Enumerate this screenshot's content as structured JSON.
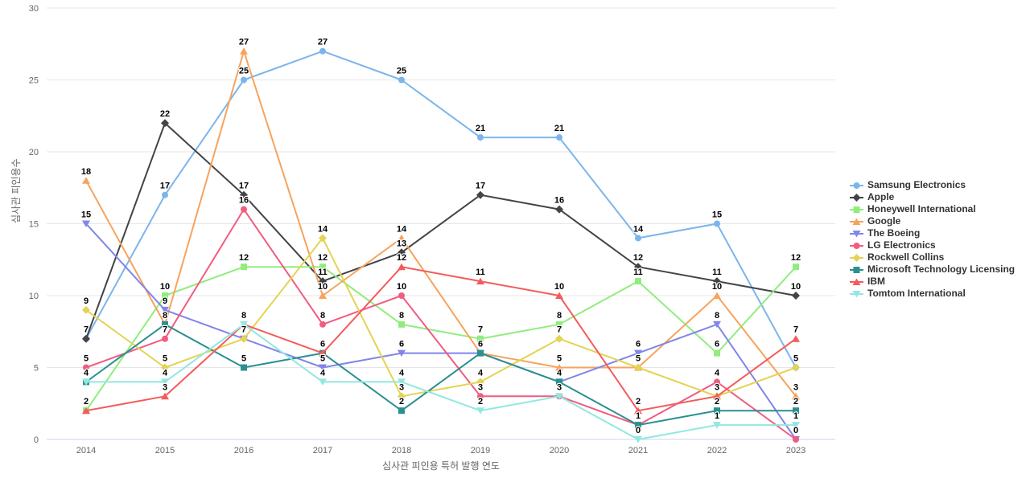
{
  "chart_data": {
    "type": "line",
    "x": [
      "2014",
      "2015",
      "2016",
      "2017",
      "2018",
      "2019",
      "2020",
      "2021",
      "2022",
      "2023"
    ],
    "series": [
      {
        "name": "Samsung Electronics",
        "color": "#7cb5ec",
        "marker": "circle",
        "values": [
          7,
          17,
          25,
          27,
          25,
          21,
          21,
          14,
          15,
          5
        ]
      },
      {
        "name": "Apple",
        "color": "#434348",
        "marker": "diamond",
        "values": [
          7,
          22,
          17,
          11,
          13,
          17,
          16,
          12,
          11,
          10
        ]
      },
      {
        "name": "Honeywell International",
        "color": "#90ed7d",
        "marker": "square",
        "values": [
          2,
          10,
          12,
          12,
          8,
          7,
          8,
          11,
          6,
          12
        ]
      },
      {
        "name": "Google",
        "color": "#f7a35c",
        "marker": "triangle",
        "values": [
          18,
          8,
          27,
          10,
          14,
          6,
          5,
          5,
          10,
          3
        ]
      },
      {
        "name": "The Boeing",
        "color": "#8085e9",
        "marker": "triangle-down",
        "values": [
          15,
          9,
          7,
          5,
          6,
          6,
          4,
          6,
          8,
          0
        ]
      },
      {
        "name": "LG Electronics",
        "color": "#f15c80",
        "marker": "circle",
        "values": [
          5,
          7,
          16,
          8,
          10,
          3,
          3,
          1,
          4,
          0
        ]
      },
      {
        "name": "Rockwell Collins",
        "color": "#e4d354",
        "marker": "diamond",
        "values": [
          9,
          5,
          7,
          14,
          3,
          4,
          7,
          5,
          3,
          5
        ]
      },
      {
        "name": "Microsoft Technology Licensing",
        "color": "#2b908f",
        "marker": "square",
        "values": [
          4,
          8,
          5,
          6,
          2,
          6,
          4,
          1,
          2,
          2
        ]
      },
      {
        "name": "IBM",
        "color": "#f45b5b",
        "marker": "triangle",
        "values": [
          2,
          3,
          8,
          6,
          12,
          11,
          10,
          2,
          3,
          7
        ]
      },
      {
        "name": "Tomtom International",
        "color": "#91e8e1",
        "marker": "triangle-down",
        "values": [
          4,
          4,
          8,
          4,
          4,
          2,
          3,
          0,
          1,
          1
        ]
      }
    ],
    "xlabel": "심사관 피인용 특허 발행 연도",
    "ylabel": "심사관 피인용수",
    "ylim": [
      0,
      30
    ],
    "yticks": [
      0,
      5,
      10,
      15,
      20,
      25,
      30
    ],
    "grid": true,
    "legend_position": "right",
    "colors": {
      "gridline": "#e6e6e6",
      "axis_line": "#ccd6eb",
      "tick_label": "#666666",
      "data_label": "#000000",
      "legend_text": "#333333",
      "background": "#ffffff"
    }
  }
}
